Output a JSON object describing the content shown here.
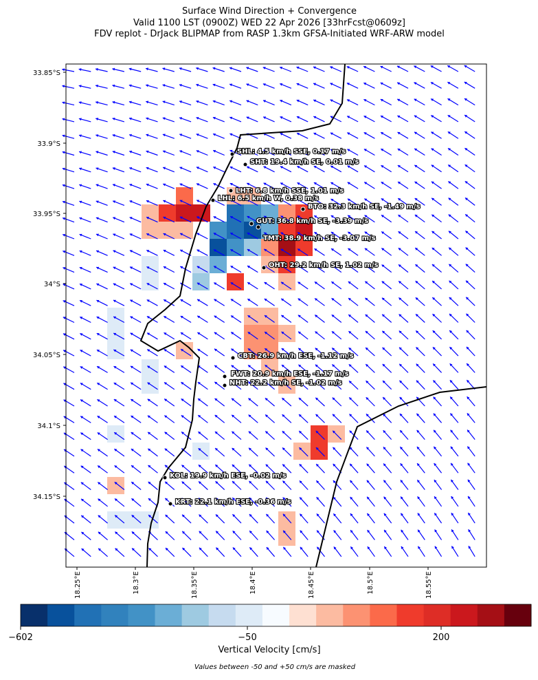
{
  "header": {
    "title": [
      "Surface Wind Direction + Convergence",
      "Valid 1100 LST (0900Z) WED 22 Apr 2026 [33hrFcst@0609z]",
      "FDV replot - DrJack BLIPMAP from RASP 1.3km GFSA-Initiated WRF-ARW model"
    ]
  },
  "map": {
    "lat_ticks": [
      "33.85°S",
      "33.9°S",
      "33.95°S",
      "34°S",
      "34.05°S",
      "34.1°S",
      "34.15°S"
    ],
    "lon_ticks": [
      "18.25°E",
      "18.3°E",
      "18.35°E",
      "18.4°E",
      "18.45°E",
      "18.5°E",
      "18.55°E"
    ],
    "stations": [
      "SHL: 4.5 km/h SSE, 0.17 m/s",
      "SHT: 19.4 km/h SE, 0.01 m/s",
      "LHT: 6.8 km/h SSE, 1.01 m/s",
      "LHL: 6.5 km/h W, 0.38 m/s",
      "BTO: 32.3 km/h SE, -1.49 m/s",
      "GUT: 36.8 km/h SE, -3.39 m/s",
      "TMT: 38.9 km/h SE, -3.07 m/s",
      "OHT: 29.2 km/h SE, 1.02 m/s",
      "CBT: 26.9 km/h ESE, -1.12 m/s",
      "FWT: 20.9 km/h ESE, -1.17 m/s",
      "NHT: 22.2 km/h SE, -1.02 m/s",
      "KOL: 19.9 km/h ESE, -0.02 m/s",
      "KRT: 22.1 km/h ESE, -0.36 m/s"
    ]
  },
  "colorbar": {
    "ticks": [
      "−602",
      "−50",
      "200"
    ],
    "label": "Vertical Velocity [cm/s]",
    "note": "Values between -50 and +50 cm/s are masked"
  }
}
